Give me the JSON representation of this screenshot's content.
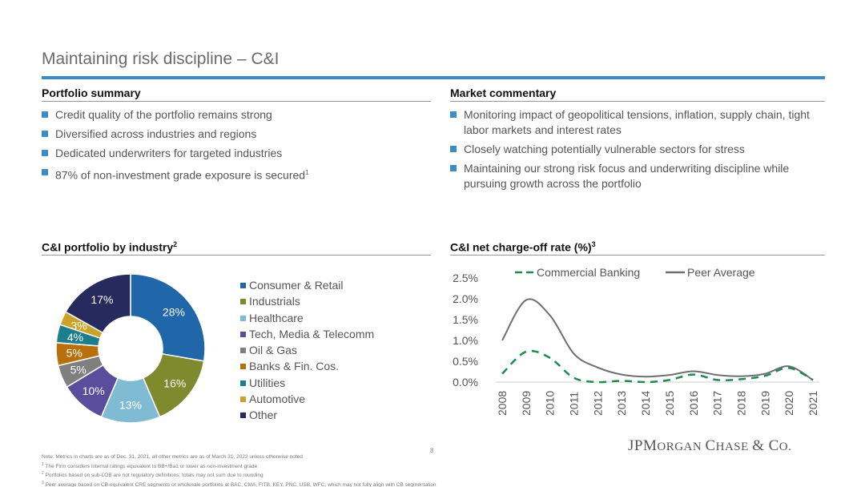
{
  "title": "Maintaining risk discipline – C&I",
  "portfolio_summary": {
    "heading": "Portfolio summary",
    "bullets": [
      {
        "text": "Credit quality of the portfolio remains strong",
        "sup": ""
      },
      {
        "text": "Diversified across industries and regions",
        "sup": ""
      },
      {
        "text": "Dedicated underwriters for targeted industries",
        "sup": ""
      },
      {
        "text": "87% of non-investment grade exposure is secured",
        "sup": "1"
      }
    ]
  },
  "market_commentary": {
    "heading": "Market commentary",
    "bullets": [
      {
        "text": "Monitoring impact of geopolitical tensions, inflation, supply chain, tight labor markets and interest rates"
      },
      {
        "text": "Closely watching potentially vulnerable sectors for stress"
      },
      {
        "text": "Maintaining our strong risk focus and underwriting discipline while pursuing growth across the portfolio"
      }
    ]
  },
  "industry_chart": {
    "heading": "C&I portfolio by industry",
    "heading_sup": "2"
  },
  "nco_chart": {
    "heading": "C&I net charge-off rate (%)",
    "heading_sup": "3"
  },
  "chart_data": [
    {
      "type": "pie",
      "donut": true,
      "categories": [
        "Consumer & Retail",
        "Industrials",
        "Healthcare",
        "Tech, Media & Telecomm",
        "Oil & Gas",
        "Banks & Fin. Cos.",
        "Utilities",
        "Automotive",
        "Other"
      ],
      "values": [
        28,
        16,
        13,
        10,
        5,
        5,
        4,
        3,
        17
      ],
      "labels": [
        "28%",
        "16%",
        "13%",
        "10%",
        "5%",
        "5%",
        "4%",
        "3%",
        "17%"
      ],
      "colors": [
        "#1f67a8",
        "#7d8a2e",
        "#7fbcd3",
        "#5a4e9c",
        "#7f7f7f",
        "#b8700c",
        "#1c7d8c",
        "#c9a428",
        "#262a5c"
      ],
      "legend_position": "right"
    },
    {
      "type": "line",
      "x": [
        "2008",
        "2009",
        "2010",
        "2011",
        "2012",
        "2013",
        "2014",
        "2015",
        "2016",
        "2017",
        "2018",
        "2019",
        "2020",
        "2021"
      ],
      "series": [
        {
          "name": "Commercial Banking",
          "values": [
            0.2,
            0.73,
            0.58,
            0.1,
            0.0,
            0.03,
            0.0,
            0.05,
            0.18,
            0.05,
            0.07,
            0.15,
            0.34,
            0.05
          ],
          "color": "#1e8a4c",
          "style": "dashed"
        },
        {
          "name": "Peer Average",
          "values": [
            1.0,
            1.97,
            1.6,
            0.68,
            0.35,
            0.18,
            0.13,
            0.17,
            0.26,
            0.17,
            0.14,
            0.2,
            0.38,
            0.05
          ],
          "color": "#6f6f6f",
          "style": "solid"
        }
      ],
      "y_ticks": [
        "0.0%",
        "0.5%",
        "1.0%",
        "1.5%",
        "2.0%",
        "2.5%"
      ],
      "ylim": [
        0,
        2.5
      ],
      "grid": false,
      "legend_position": "top"
    }
  ],
  "page_number": "8",
  "logo": {
    "a": "JPM",
    "b": "ORGAN ",
    "c": "C",
    "d": "HASE ",
    "e": "& C",
    "f": "O."
  },
  "notes": [
    {
      "sup": "",
      "text": "Note: Metrics in charts are as of Dec. 31, 2021, all other metrics are as of March 31, 2022 unless otherwise noted"
    },
    {
      "sup": "1",
      "text": "The Firm considers internal ratings equivalent to BB+/Ba1 or lower as non-investment grade"
    },
    {
      "sup": "2",
      "text": "Portfolios based on sub-LOB are not regulatory definitions; totals may not sum due to rounding"
    },
    {
      "sup": "3",
      "text": "Peer average based on CB-equivalent CRE segments or wholesale portfolios at BAC, CMA, FITB, KEY, PNC, USB, WFC, which may not fully align with CB segmentation"
    }
  ]
}
